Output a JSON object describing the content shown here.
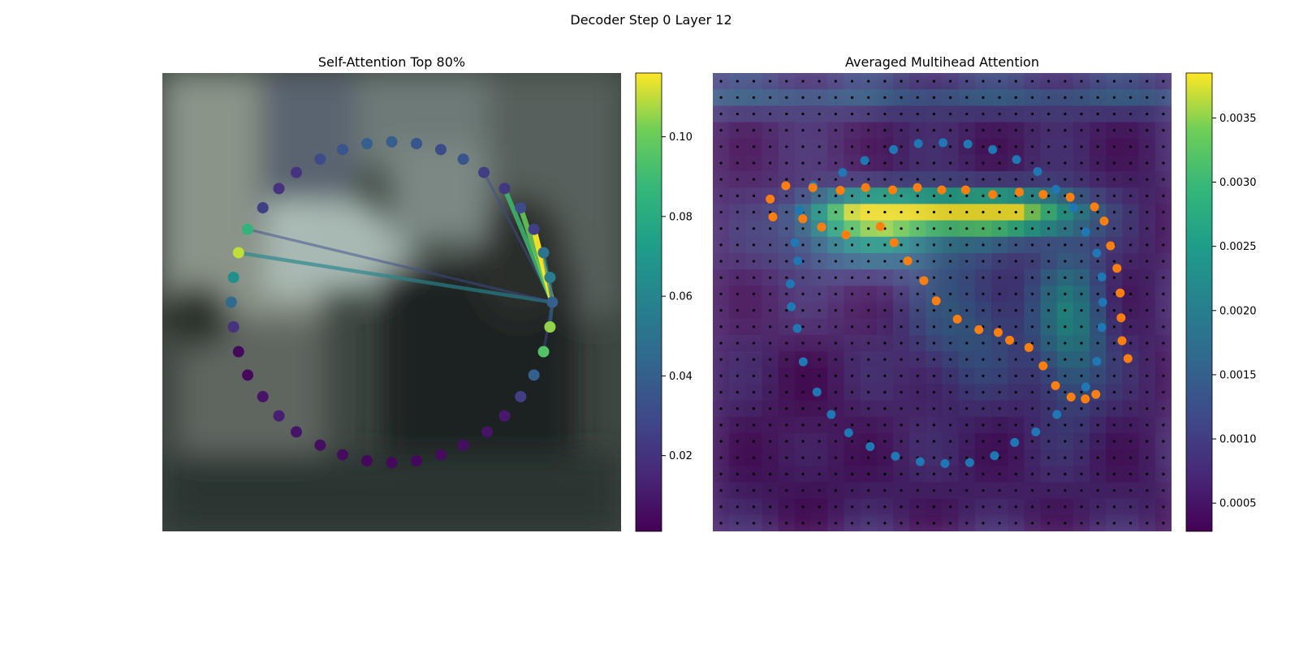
{
  "figure": {
    "suptitle": "Decoder Step 0 Layer 12"
  },
  "chart_data": [
    {
      "type": "scatter",
      "title": "Self-Attention Top 80%",
      "description_note": "",
      "colorbar": {
        "colormap": "viridis",
        "vmin": 0.001,
        "vmax": 0.116,
        "ticks": [
          0.02,
          0.04,
          0.06,
          0.08,
          0.1
        ],
        "tick_labels": [
          "0.02",
          "0.04",
          "0.06",
          "0.08",
          "0.10"
        ]
      },
      "points": [
        {
          "x": 0.5,
          "y": 0.15,
          "v": 0.04
        },
        {
          "x": 0.554,
          "y": 0.154,
          "v": 0.035
        },
        {
          "x": 0.607,
          "y": 0.167,
          "v": 0.03
        },
        {
          "x": 0.656,
          "y": 0.188,
          "v": 0.035
        },
        {
          "x": 0.701,
          "y": 0.217,
          "v": 0.025
        },
        {
          "x": 0.746,
          "y": 0.252,
          "v": 0.022
        },
        {
          "x": 0.781,
          "y": 0.294,
          "v": 0.03
        },
        {
          "x": 0.81,
          "y": 0.341,
          "v": 0.025
        },
        {
          "x": 0.831,
          "y": 0.392,
          "v": 0.05
        },
        {
          "x": 0.845,
          "y": 0.446,
          "v": 0.055
        },
        {
          "x": 0.85,
          "y": 0.5,
          "v": 0.04
        },
        {
          "x": 0.845,
          "y": 0.554,
          "v": 0.105
        },
        {
          "x": 0.831,
          "y": 0.608,
          "v": 0.095
        },
        {
          "x": 0.81,
          "y": 0.659,
          "v": 0.04
        },
        {
          "x": 0.781,
          "y": 0.706,
          "v": 0.025
        },
        {
          "x": 0.746,
          "y": 0.748,
          "v": 0.01
        },
        {
          "x": 0.708,
          "y": 0.783,
          "v": 0.008
        },
        {
          "x": 0.656,
          "y": 0.812,
          "v": 0.006
        },
        {
          "x": 0.607,
          "y": 0.833,
          "v": 0.005
        },
        {
          "x": 0.554,
          "y": 0.846,
          "v": 0.004
        },
        {
          "x": 0.5,
          "y": 0.85,
          "v": 0.004
        },
        {
          "x": 0.446,
          "y": 0.846,
          "v": 0.004
        },
        {
          "x": 0.393,
          "y": 0.833,
          "v": 0.005
        },
        {
          "x": 0.344,
          "y": 0.812,
          "v": 0.006
        },
        {
          "x": 0.292,
          "y": 0.783,
          "v": 0.008
        },
        {
          "x": 0.254,
          "y": 0.748,
          "v": 0.012
        },
        {
          "x": 0.219,
          "y": 0.706,
          "v": 0.008
        },
        {
          "x": 0.186,
          "y": 0.659,
          "v": 0.004
        },
        {
          "x": 0.166,
          "y": 0.608,
          "v": 0.004
        },
        {
          "x": 0.155,
          "y": 0.554,
          "v": 0.02
        },
        {
          "x": 0.15,
          "y": 0.5,
          "v": 0.045
        },
        {
          "x": 0.155,
          "y": 0.446,
          "v": 0.065
        },
        {
          "x": 0.166,
          "y": 0.392,
          "v": 0.11
        },
        {
          "x": 0.186,
          "y": 0.341,
          "v": 0.085
        },
        {
          "x": 0.219,
          "y": 0.294,
          "v": 0.025
        },
        {
          "x": 0.254,
          "y": 0.252,
          "v": 0.02
        },
        {
          "x": 0.292,
          "y": 0.217,
          "v": 0.02
        },
        {
          "x": 0.344,
          "y": 0.188,
          "v": 0.03
        },
        {
          "x": 0.446,
          "y": 0.154,
          "v": 0.04
        },
        {
          "x": 0.393,
          "y": 0.167,
          "v": 0.035
        }
      ],
      "attention_target_index": 10,
      "attention_lines": [
        {
          "from": 4,
          "v": 0.03
        },
        {
          "from": 5,
          "v": 0.09
        },
        {
          "from": 6,
          "v": 0.1
        },
        {
          "from": 7,
          "v": 0.116
        },
        {
          "from": 8,
          "v": 0.06
        },
        {
          "from": 9,
          "v": 0.04
        },
        {
          "from": 11,
          "v": 0.05
        },
        {
          "from": 12,
          "v": 0.03
        },
        {
          "from": 32,
          "v": 0.06
        },
        {
          "from": 33,
          "v": 0.03
        }
      ]
    },
    {
      "type": "heatmap",
      "title": "Averaged Multihead Attention",
      "colorbar": {
        "colormap": "viridis",
        "vmin": 0.00028,
        "vmax": 0.00385,
        "ticks": [
          0.0005,
          0.001,
          0.0015,
          0.002,
          0.0025,
          0.003,
          0.0035
        ],
        "tick_labels": [
          "0.0005",
          "0.0010",
          "0.0015",
          "0.0020",
          "0.0025",
          "0.0030",
          "0.0035"
        ]
      },
      "grid_size": 28,
      "series": [
        {
          "name": "",
          "color": "#1f77b4",
          "points": [
            [
              0.169,
              0.46
            ],
            [
              0.171,
              0.51
            ],
            [
              0.179,
              0.37
            ],
            [
              0.184,
              0.557
            ],
            [
              0.185,
              0.41
            ],
            [
              0.189,
              0.3
            ],
            [
              0.197,
              0.63
            ],
            [
              0.219,
              0.245
            ],
            [
              0.227,
              0.696
            ],
            [
              0.258,
              0.745
            ],
            [
              0.283,
              0.217
            ],
            [
              0.296,
              0.785
            ],
            [
              0.331,
              0.191
            ],
            [
              0.343,
              0.815
            ],
            [
              0.394,
              0.167
            ],
            [
              0.398,
              0.836
            ],
            [
              0.448,
              0.154
            ],
            [
              0.452,
              0.848
            ],
            [
              0.502,
              0.152
            ],
            [
              0.506,
              0.852
            ],
            [
              0.556,
              0.155
            ],
            [
              0.56,
              0.85
            ],
            [
              0.61,
              0.167
            ],
            [
              0.614,
              0.835
            ],
            [
              0.662,
              0.189
            ],
            [
              0.658,
              0.806
            ],
            [
              0.708,
              0.215
            ],
            [
              0.704,
              0.783
            ],
            [
              0.748,
              0.254
            ],
            [
              0.75,
              0.745
            ],
            [
              0.786,
              0.294
            ],
            [
              0.813,
              0.685
            ],
            [
              0.813,
              0.347
            ],
            [
              0.837,
              0.629
            ],
            [
              0.837,
              0.393
            ],
            [
              0.848,
              0.555
            ],
            [
              0.848,
              0.445
            ],
            [
              0.85,
              0.5
            ]
          ]
        },
        {
          "name": "",
          "color": "#ff7f0e",
          "points": [
            [
              0.125,
              0.275
            ],
            [
              0.131,
              0.314
            ],
            [
              0.159,
              0.246
            ],
            [
              0.196,
              0.318
            ],
            [
              0.218,
              0.25
            ],
            [
              0.237,
              0.336
            ],
            [
              0.278,
              0.256
            ],
            [
              0.29,
              0.353
            ],
            [
              0.333,
              0.25
            ],
            [
              0.365,
              0.335
            ],
            [
              0.392,
              0.255
            ],
            [
              0.395,
              0.37
            ],
            [
              0.425,
              0.41
            ],
            [
              0.446,
              0.25
            ],
            [
              0.46,
              0.453
            ],
            [
              0.487,
              0.497
            ],
            [
              0.499,
              0.255
            ],
            [
              0.533,
              0.537
            ],
            [
              0.551,
              0.255
            ],
            [
              0.58,
              0.56
            ],
            [
              0.61,
              0.265
            ],
            [
              0.622,
              0.566
            ],
            [
              0.647,
              0.583
            ],
            [
              0.668,
              0.26
            ],
            [
              0.689,
              0.599
            ],
            [
              0.72,
              0.265
            ],
            [
              0.72,
              0.639
            ],
            [
              0.747,
              0.682
            ],
            [
              0.779,
              0.271
            ],
            [
              0.781,
              0.707
            ],
            [
              0.812,
              0.711
            ],
            [
              0.832,
              0.292
            ],
            [
              0.835,
              0.701
            ],
            [
              0.853,
              0.323
            ],
            [
              0.867,
              0.377
            ],
            [
              0.881,
              0.426
            ],
            [
              0.888,
              0.48
            ],
            [
              0.89,
              0.534
            ],
            [
              0.892,
              0.584
            ],
            [
              0.905,
              0.623
            ]
          ]
        }
      ]
    }
  ],
  "colors": {
    "left_series_line": "#2a7f8e",
    "small_grid_dot": "#000000",
    "heatmap_overlay_opacity": 0.8
  }
}
